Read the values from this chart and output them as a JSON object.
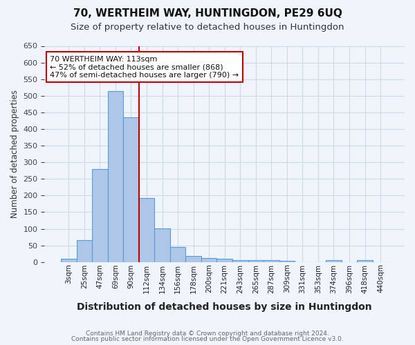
{
  "title1": "70, WERTHEIM WAY, HUNTINGDON, PE29 6UQ",
  "title2": "Size of property relative to detached houses in Huntingdon",
  "xlabel": "Distribution of detached houses by size in Huntingdon",
  "ylabel": "Number of detached properties",
  "footnote1": "Contains HM Land Registry data © Crown copyright and database right 2024.",
  "footnote2": "Contains public sector information licensed under the Open Government Licence v3.0.",
  "bin_labels": [
    "3sqm",
    "25sqm",
    "47sqm",
    "69sqm",
    "90sqm",
    "112sqm",
    "134sqm",
    "156sqm",
    "178sqm",
    "200sqm",
    "221sqm",
    "243sqm",
    "265sqm",
    "287sqm",
    "309sqm",
    "331sqm",
    "353sqm",
    "374sqm",
    "396sqm",
    "418sqm",
    "440sqm"
  ],
  "bar_values": [
    10,
    65,
    280,
    515,
    435,
    193,
    102,
    46,
    19,
    12,
    9,
    6,
    5,
    5,
    4,
    0,
    0,
    5,
    0,
    5,
    0
  ],
  "bar_color": "#aec6e8",
  "bar_edge_color": "#5b9bd5",
  "vline_pos": 4.5,
  "vline_color": "#c00000",
  "annotation_text": "70 WERTHEIM WAY: 113sqm\n← 52% of detached houses are smaller (868)\n47% of semi-detached houses are larger (790) →",
  "annotation_box_color": "white",
  "annotation_box_edge": "#c00000",
  "ylim": [
    0,
    650
  ],
  "yticks": [
    0,
    50,
    100,
    150,
    200,
    250,
    300,
    350,
    400,
    450,
    500,
    550,
    600,
    650
  ],
  "grid_color": "#d0d8e8",
  "bg_color": "#f0f4fb"
}
